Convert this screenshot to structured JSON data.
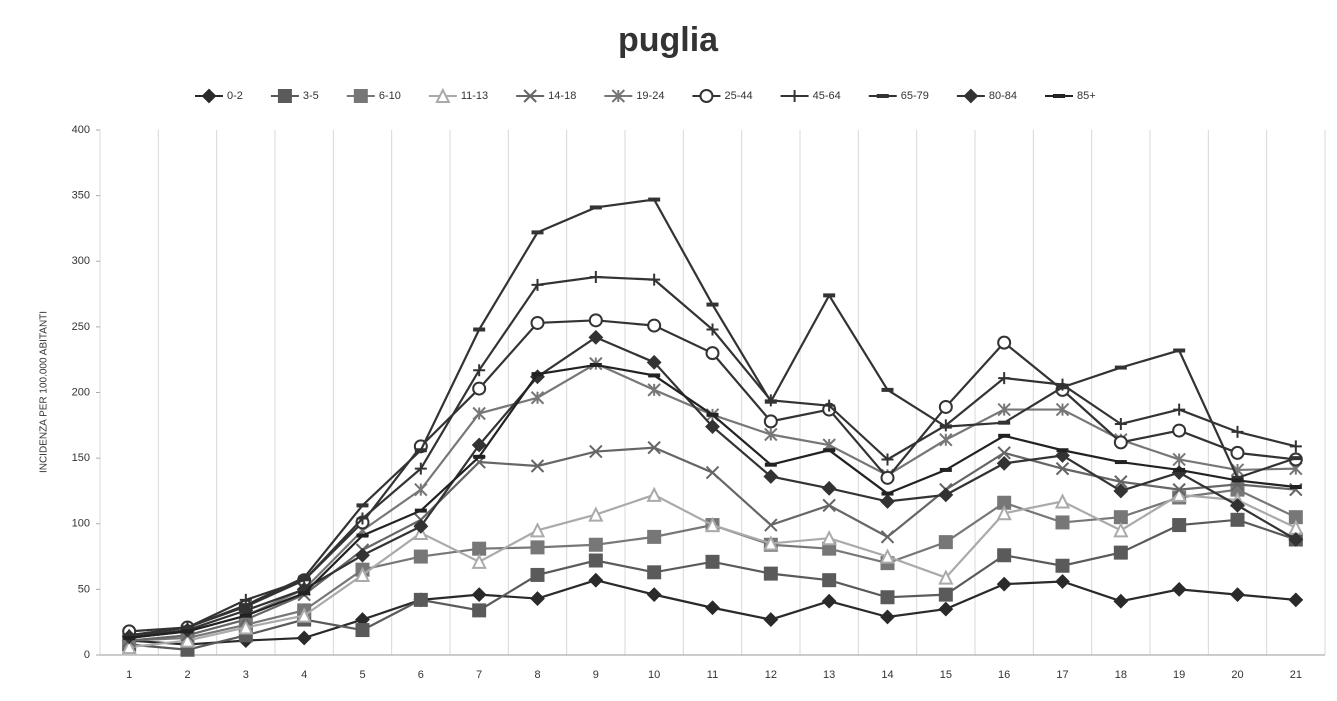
{
  "chart_data": {
    "type": "line",
    "title": "puglia",
    "y_label": "INCIDENZA PER 100.000 ABITANTI",
    "categories": [
      "1",
      "2",
      "3",
      "4",
      "5",
      "6",
      "7",
      "8",
      "9",
      "10",
      "11",
      "12",
      "13",
      "14",
      "15",
      "16",
      "17",
      "18",
      "19",
      "20",
      "21"
    ],
    "ylim": [
      0,
      400
    ],
    "yticks": [
      0,
      50,
      100,
      150,
      200,
      250,
      300,
      350,
      400
    ],
    "legend": "top",
    "series": [
      {
        "name": "0-2",
        "color": "#2a2a2a",
        "marker": "diamond",
        "values": [
          11,
          8,
          11,
          13,
          27,
          42,
          46,
          43,
          57,
          46,
          36,
          27,
          41,
          29,
          35,
          54,
          56,
          41,
          50,
          46,
          42
        ]
      },
      {
        "name": "3-5",
        "color": "#5a5a5a",
        "marker": "square",
        "values": [
          8,
          4,
          15,
          27,
          19,
          42,
          34,
          61,
          72,
          63,
          71,
          62,
          57,
          44,
          46,
          76,
          68,
          78,
          99,
          103,
          88
        ]
      },
      {
        "name": "6-10",
        "color": "#777777",
        "marker": "square",
        "values": [
          11,
          13,
          23,
          34,
          65,
          75,
          81,
          82,
          84,
          90,
          99,
          84,
          81,
          70,
          86,
          116,
          101,
          105,
          120,
          126,
          105
        ]
      },
      {
        "name": "11-13",
        "color": "#aaaaaa",
        "marker": "triangle",
        "values": [
          6,
          11,
          21,
          30,
          61,
          93,
          71,
          95,
          107,
          122,
          99,
          85,
          89,
          75,
          59,
          108,
          117,
          95,
          122,
          118,
          97
        ]
      },
      {
        "name": "14-18",
        "color": "#666666",
        "marker": "x",
        "values": [
          11,
          15,
          27,
          46,
          80,
          103,
          147,
          144,
          155,
          158,
          139,
          99,
          114,
          90,
          126,
          154,
          142,
          132,
          126,
          130,
          126
        ]
      },
      {
        "name": "19-24",
        "color": "#777777",
        "marker": "star",
        "values": [
          13,
          18,
          30,
          50,
          95,
          126,
          184,
          196,
          222,
          202,
          183,
          168,
          160,
          137,
          164,
          187,
          187,
          164,
          149,
          141,
          142
        ]
      },
      {
        "name": "25-44",
        "color": "#333333",
        "marker": "circle",
        "values": [
          18,
          21,
          37,
          57,
          101,
          159,
          203,
          253,
          255,
          251,
          230,
          178,
          187,
          135,
          189,
          238,
          202,
          162,
          171,
          154,
          149
        ]
      },
      {
        "name": "45-64",
        "color": "#333333",
        "marker": "plus",
        "values": [
          15,
          21,
          42,
          57,
          104,
          142,
          217,
          282,
          288,
          286,
          248,
          194,
          190,
          149,
          175,
          211,
          206,
          176,
          187,
          170,
          159
        ]
      },
      {
        "name": "65-79",
        "color": "#333333",
        "marker": "dash",
        "values": [
          15,
          21,
          38,
          59,
          114,
          156,
          248,
          322,
          341,
          347,
          267,
          193,
          274,
          202,
          174,
          177,
          204,
          219,
          232,
          135,
          150
        ]
      },
      {
        "name": "80-84",
        "color": "#333333",
        "marker": "diamond",
        "values": [
          14,
          19,
          34,
          50,
          76,
          98,
          160,
          212,
          242,
          223,
          174,
          136,
          127,
          117,
          122,
          146,
          152,
          125,
          139,
          114,
          88
        ]
      },
      {
        "name": "85+",
        "color": "#222222",
        "marker": "dash",
        "values": [
          13,
          18,
          30,
          47,
          91,
          110,
          151,
          214,
          221,
          213,
          183,
          145,
          156,
          123,
          141,
          167,
          156,
          147,
          141,
          133,
          128
        ]
      }
    ]
  }
}
